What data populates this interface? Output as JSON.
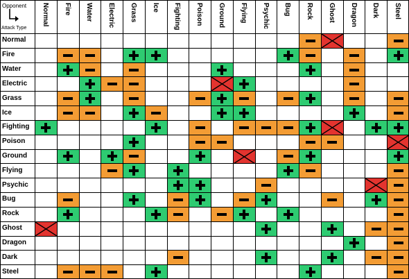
{
  "corner": {
    "opponent_label": "Opponent",
    "attack_label": "Attack Type"
  },
  "columns": [
    "Normal",
    "Fire",
    "Water",
    "Electric",
    "Grass",
    "Ice",
    "Fighting",
    "Poison",
    "Ground",
    "Flying",
    "Psychic",
    "Bug",
    "Rock",
    "Ghost",
    "Dragon",
    "Dark",
    "Steel"
  ],
  "rows": [
    "Normal",
    "Fire",
    "Water",
    "Electric",
    "Grass",
    "Ice",
    "Fighting",
    "Poison",
    "Ground",
    "Flying",
    "Psychic",
    "Bug",
    "Rock",
    "Ghost",
    "Dragon",
    "Dark",
    "Steel"
  ],
  "matrix": [
    [
      0,
      0,
      0,
      0,
      0,
      0,
      0,
      0,
      0,
      0,
      0,
      0,
      -1,
      -2,
      0,
      0,
      -1
    ],
    [
      0,
      -1,
      -1,
      0,
      1,
      1,
      0,
      0,
      0,
      0,
      0,
      1,
      -1,
      0,
      -1,
      0,
      1
    ],
    [
      0,
      1,
      -1,
      0,
      -1,
      0,
      0,
      0,
      1,
      0,
      0,
      0,
      1,
      0,
      -1,
      0,
      0
    ],
    [
      0,
      0,
      1,
      -1,
      -1,
      0,
      0,
      0,
      -2,
      1,
      0,
      0,
      0,
      0,
      -1,
      0,
      0
    ],
    [
      0,
      -1,
      1,
      0,
      -1,
      0,
      0,
      -1,
      1,
      -1,
      0,
      -1,
      1,
      0,
      -1,
      0,
      -1
    ],
    [
      0,
      -1,
      -1,
      0,
      1,
      -1,
      0,
      0,
      1,
      1,
      0,
      0,
      0,
      0,
      1,
      0,
      -1
    ],
    [
      1,
      0,
      0,
      0,
      0,
      1,
      0,
      -1,
      0,
      -1,
      -1,
      -1,
      1,
      -2,
      0,
      1,
      1
    ],
    [
      0,
      0,
      0,
      0,
      1,
      0,
      0,
      -1,
      -1,
      0,
      0,
      0,
      -1,
      -1,
      0,
      0,
      -2
    ],
    [
      0,
      1,
      0,
      1,
      -1,
      0,
      0,
      1,
      0,
      -2,
      0,
      -1,
      1,
      0,
      0,
      0,
      1
    ],
    [
      0,
      0,
      0,
      -1,
      1,
      0,
      1,
      0,
      0,
      0,
      0,
      1,
      -1,
      0,
      0,
      0,
      -1
    ],
    [
      0,
      0,
      0,
      0,
      0,
      0,
      1,
      1,
      0,
      0,
      -1,
      0,
      0,
      0,
      0,
      -2,
      -1
    ],
    [
      0,
      -1,
      0,
      0,
      1,
      0,
      -1,
      1,
      0,
      -1,
      1,
      0,
      0,
      -1,
      0,
      1,
      -1
    ],
    [
      0,
      1,
      0,
      0,
      0,
      1,
      -1,
      0,
      -1,
      1,
      0,
      1,
      0,
      0,
      0,
      0,
      -1
    ],
    [
      -2,
      0,
      0,
      0,
      0,
      0,
      0,
      0,
      0,
      0,
      1,
      0,
      0,
      1,
      0,
      -1,
      -1
    ],
    [
      0,
      0,
      0,
      0,
      0,
      0,
      0,
      0,
      0,
      0,
      0,
      0,
      0,
      0,
      1,
      0,
      -1
    ],
    [
      0,
      0,
      0,
      0,
      0,
      0,
      -1,
      0,
      0,
      0,
      1,
      0,
      0,
      1,
      0,
      -1,
      -1
    ],
    [
      0,
      -1,
      -1,
      -1,
      0,
      1,
      0,
      0,
      0,
      0,
      0,
      0,
      1,
      0,
      0,
      0,
      -1
    ]
  ],
  "legend_symbols": {
    "plus": "+",
    "minus": "−",
    "none": "X"
  },
  "colors": {
    "plus": "#2ecb71",
    "minus": "#f39c34",
    "none": "#e3342f",
    "grid": "#000000"
  }
}
